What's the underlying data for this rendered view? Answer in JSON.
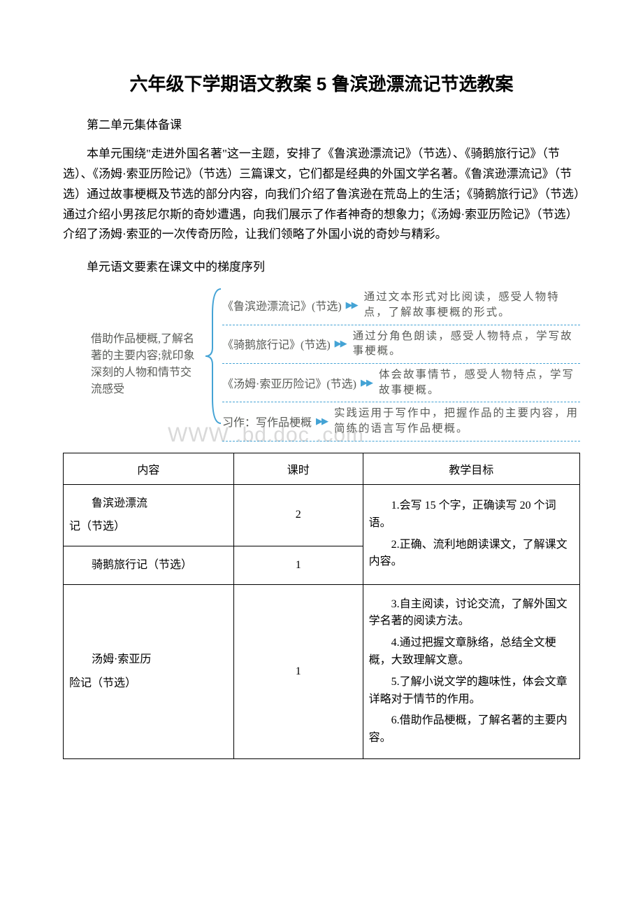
{
  "title": "六年级下学期语文教案 5 鲁滨逊漂流记节选教案",
  "section1_heading": "第二单元集体备课",
  "intro_para": "本单元围绕\"走进外国名著\"这一主题，安排了《鲁滨逊漂流记》（节选）、《骑鹅旅行记》（节选）、《汤姆·索亚历险记》（节选）三篇课文，它们都是经典的外国文学名著。《鲁滨逊漂流记》（节选）通过故事梗概及节选的部分内容，向我们介绍了鲁滨逊在荒岛上的生活；《骑鹅旅行记》（节选）通过介绍小男孩尼尔斯的奇妙遭遇，向我们展示了作者神奇的想象力；《汤姆·索亚历险记》（节选）介绍了汤姆·索亚的一次传奇历险，让我们领略了外国小说的奇妙与精彩。",
  "section2_heading": "单元语文要素在课文中的梯度序列",
  "diagram": {
    "left_label": "借助作品梗概,了解名著的主要内容;就印象深刻的人物和情节交流感受",
    "rows": [
      {
        "left": "《鲁滨逊漂流记》(节选)",
        "right": "通过文本形式对比阅读，感受人物特点，了解故事梗概的形式。"
      },
      {
        "left": "《骑鹅旅行记》(节选)",
        "right": "通过分角色朗读，感受人物特点，学写故事梗概。"
      },
      {
        "left": "《汤姆·索亚历险记》(节选)",
        "right": "体会故事情节，感受人物特点，学写故事梗概。"
      },
      {
        "left": "习作：写作品梗概",
        "right": "实践运用于写作中，把握作品的主要内容，用简练的语言写作品梗概。"
      }
    ],
    "bracket_color": "#44a3d5",
    "arrow_color": "#44a3d5",
    "dash_color": "#44a3d5",
    "text_color": "#595b57"
  },
  "watermark": "WWW .bd.doc .com",
  "table": {
    "headers": [
      "内容",
      "课时",
      "教学目标"
    ],
    "rows": [
      {
        "content": "鲁滨逊漂流\n记（节选）",
        "hours": "2"
      },
      {
        "content": "骑鹅旅行记（节选）",
        "hours": "1"
      },
      {
        "content": "汤姆·索亚历\n险记（节选）",
        "hours": "1"
      }
    ],
    "goals_block1": [
      "1.会写 15 个字，正确读写 20 个词语。",
      "2.正确、流利地朗读课文，了解课文内容。"
    ],
    "goals_block2": [
      "3.自主阅读，讨论交流，了解外国文学名著的阅读方法。",
      "4.通过把握文章脉络，总结全文梗概，大致理解文意。",
      "5.了解小说文学的趣味性，体会文章详略对于情节的作用。",
      "6.借助作品梗概，了解名著的主要内容。"
    ]
  }
}
